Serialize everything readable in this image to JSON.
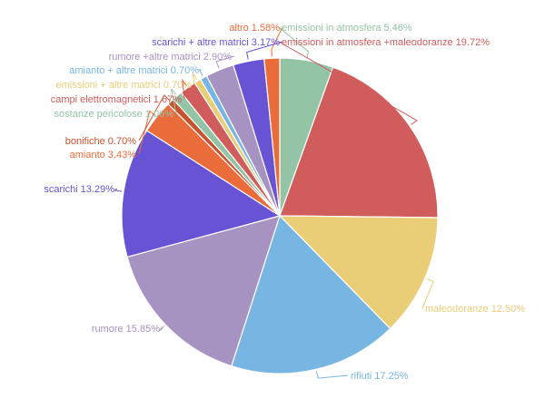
{
  "chart_data": {
    "type": "pie",
    "start_angle_deg": 0,
    "direction": "clockwise",
    "slices": [
      {
        "label": "emissioni in atmosfera",
        "value": 5.46,
        "display": "5.46%",
        "color": "#93c4a6"
      },
      {
        "label": "emissioni in atmosfera +maleodoranze",
        "value": 19.72,
        "display": "19.72%",
        "color": "#d15c5c"
      },
      {
        "label": "maleodoranze",
        "value": 12.5,
        "display": "12.50%",
        "color": "#e9cd77"
      },
      {
        "label": "rifiuti",
        "value": 17.25,
        "display": "17.25%",
        "color": "#77b6e2"
      },
      {
        "label": "rumore",
        "value": 15.85,
        "display": "15.85%",
        "color": "#a793c1"
      },
      {
        "label": "scarichi",
        "value": 13.29,
        "display": "13.29%",
        "color": "#6753d3"
      },
      {
        "label": "amianto",
        "value": 3.43,
        "display": "3.43%",
        "color": "#ea6c3b"
      },
      {
        "label": "bonifiche",
        "value": 0.7,
        "display": "0.70%",
        "color": "#c7522f"
      },
      {
        "label": "sostanze pericolose",
        "value": 1.06,
        "display": "1.06%",
        "color": "#93c4a6"
      },
      {
        "label": "campi elettromagnetici",
        "value": 1.67,
        "display": "1.67%",
        "color": "#d15c5c"
      },
      {
        "label": "emissioni + altre matrici",
        "value": 0.7,
        "display": "0.70%",
        "color": "#e9cd77"
      },
      {
        "label": "amianto + altre matrici",
        "value": 0.7,
        "display": "0.70%",
        "color": "#77b6e2"
      },
      {
        "label": "rumore +altre matrici",
        "value": 2.9,
        "display": "2.90%",
        "color": "#a793c1"
      },
      {
        "label": "scarichi + altre matrici",
        "value": 3.17,
        "display": "3.17%",
        "color": "#6753d3"
      },
      {
        "label": "altro",
        "value": 1.58,
        "display": "1.58%",
        "color": "#ea6c3b"
      }
    ]
  }
}
